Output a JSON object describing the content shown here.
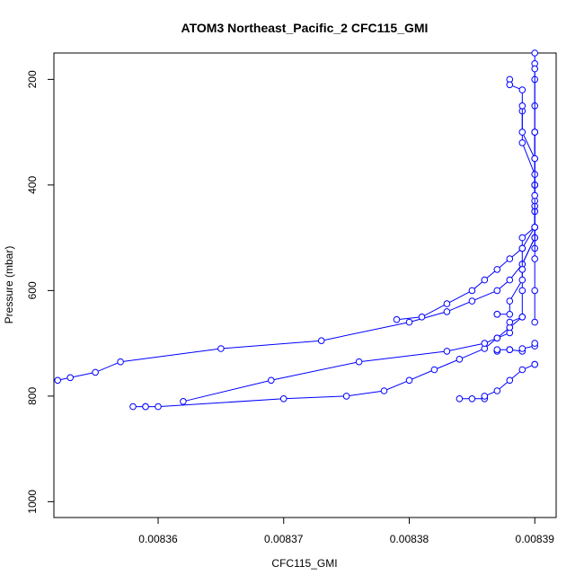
{
  "chart_data": {
    "type": "line",
    "title": "ATOM3 Northeast_Pacific_2 CFC115_GMI",
    "xlabel": "CFC115_GMI",
    "ylabel": "Pressure (mbar)",
    "xlim": [
      0.0083517,
      0.0083917
    ],
    "ylim": [
      1030,
      150
    ],
    "y_inverted": true,
    "x_ticks": [
      0.00836,
      0.00837,
      0.00838,
      0.00839
    ],
    "x_tick_labels": [
      "0.00836",
      "0.00837",
      "0.00838",
      "0.00839"
    ],
    "y_ticks": [
      200,
      400,
      600,
      800,
      1000
    ],
    "y_tick_labels": [
      "200",
      "400",
      "600",
      "800",
      "1000"
    ],
    "grid": false,
    "series_color": "#0000ff",
    "marker": "open-circle",
    "series": [
      {
        "x": [
          0.008359,
          0.008358,
          0.008359,
          0.00836,
          0.00837,
          0.008375,
          0.008378,
          0.00838,
          0.008382,
          0.008384,
          0.008386,
          0.008387,
          0.008388,
          0.008389,
          0.008389,
          0.008389,
          0.00839,
          0.00839,
          0.00839,
          0.00839,
          0.00839,
          0.00839,
          0.00839,
          0.00839,
          0.00839
        ],
        "y": [
          820,
          820,
          820,
          820,
          805,
          800,
          790,
          770,
          750,
          730,
          710,
          690,
          670,
          650,
          600,
          550,
          500,
          450,
          400,
          350,
          300,
          250,
          200,
          170,
          150
        ]
      },
      {
        "x": [
          0.008352,
          0.008353,
          0.008355,
          0.008357,
          0.008365,
          0.008373,
          0.00838,
          0.008383,
          0.008385,
          0.008387,
          0.008388,
          0.008389,
          0.00839,
          0.00839,
          0.00839,
          0.00839,
          0.00839
        ],
        "y": [
          770,
          765,
          755,
          735,
          710,
          695,
          660,
          640,
          620,
          600,
          580,
          550,
          500,
          450,
          400,
          300,
          180
        ]
      },
      {
        "x": [
          0.008379,
          0.008381,
          0.008383,
          0.008385,
          0.008386,
          0.008387,
          0.008388,
          0.008389,
          0.008389,
          0.00839,
          0.00839,
          0.00839,
          0.00839
        ],
        "y": [
          655,
          650,
          625,
          600,
          580,
          560,
          540,
          520,
          500,
          480,
          440,
          400,
          300
        ]
      },
      {
        "x": [
          0.008384,
          0.008385,
          0.008386,
          0.008386,
          0.008387,
          0.008388,
          0.008389,
          0.00839,
          0.00839
        ],
        "y": [
          805,
          805,
          805,
          800,
          790,
          770,
          750,
          740,
          740
        ]
      },
      {
        "x": [
          0.008362,
          0.008369,
          0.008376,
          0.008383,
          0.008386,
          0.008387,
          0.008388,
          0.008388,
          0.008388,
          0.008389
        ],
        "y": [
          810,
          770,
          735,
          715,
          700,
          690,
          680,
          670,
          660,
          650
        ]
      },
      {
        "x": [
          0.008387,
          0.008387,
          0.008388,
          0.008388,
          0.008388,
          0.008389,
          0.008389,
          0.00839,
          0.00839
        ],
        "y": [
          715,
          712,
          712,
          712,
          712,
          715,
          710,
          705,
          700
        ]
      },
      {
        "x": [
          0.008387,
          0.008387,
          0.008388,
          0.008388,
          0.008389,
          0.008389,
          0.008389,
          0.00839
        ],
        "y": [
          645,
          645,
          645,
          620,
          580,
          560,
          520,
          480
        ]
      },
      {
        "x": [
          0.008388,
          0.008388,
          0.008389,
          0.008389,
          0.008389,
          0.00839,
          0.00839,
          0.00839,
          0.00839
        ],
        "y": [
          200,
          210,
          220,
          260,
          320,
          380,
          430,
          480,
          520
        ]
      },
      {
        "x": [
          0.008389,
          0.008389,
          0.00839,
          0.00839,
          0.00839,
          0.00839,
          0.00839,
          0.00839
        ],
        "y": [
          250,
          300,
          350,
          420,
          480,
          540,
          600,
          660
        ]
      }
    ]
  }
}
